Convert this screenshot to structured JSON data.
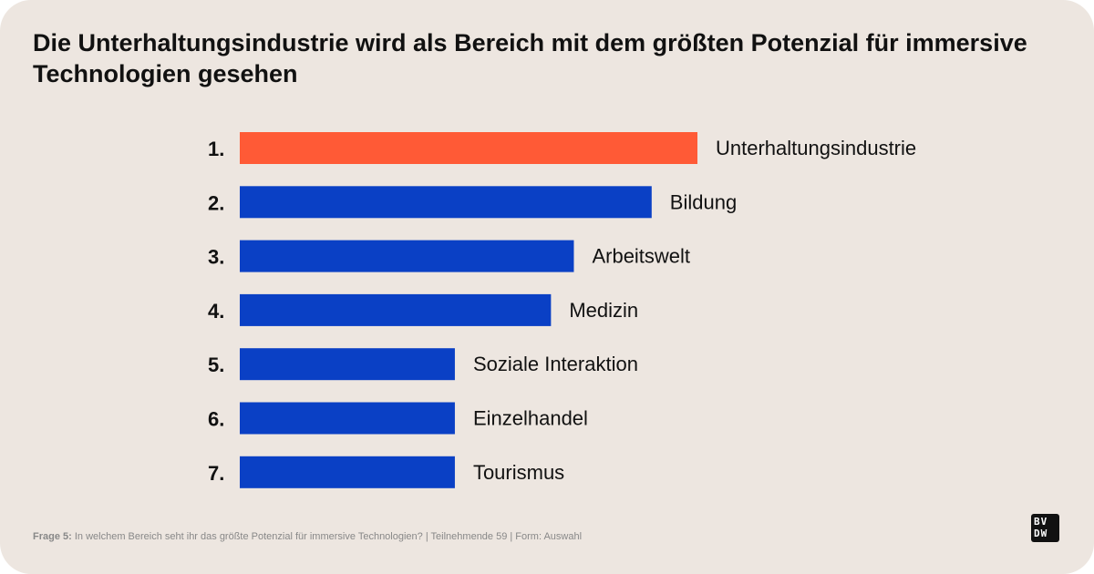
{
  "title": "Die Unterhaltungsindustrie wird als Bereich mit dem größten Potenzial für immersive Technologien gesehen",
  "chart_data": {
    "type": "bar",
    "orientation": "horizontal",
    "categories": [
      "Unterhaltungsindustrie",
      "Bildung",
      "Arbeitswelt",
      "Medizin",
      "Soziale Interaktion",
      "Einzelhandel",
      "Tourismus"
    ],
    "ranks": [
      "1.",
      "2.",
      "3.",
      "4.",
      "5.",
      "6.",
      "7."
    ],
    "values": [
      100,
      90,
      73,
      68,
      47,
      47,
      47
    ],
    "value_note": "relative bar lengths, no axis or data labels shown",
    "colors": [
      "#ff5a36",
      "#0a40c5",
      "#0a40c5",
      "#0a40c5",
      "#0a40c5",
      "#0a40c5",
      "#0a40c5"
    ],
    "grid": false
  },
  "footer": {
    "label": "Frage 5:",
    "text": " In welchem Bereich seht ihr das größte Potenzial für immersive Technologien? | Teilnehmende 59  | Form: Auswahl"
  },
  "logo": {
    "text": "BVDW"
  },
  "colors": {
    "background": "#ede6e0",
    "highlight": "#ff5a36",
    "bar": "#0a40c5"
  }
}
